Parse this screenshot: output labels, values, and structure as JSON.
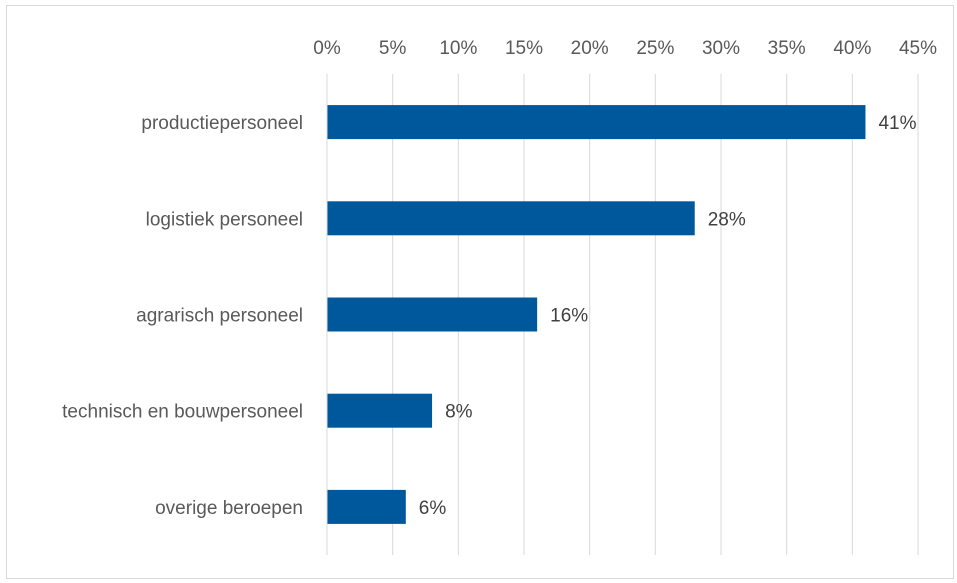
{
  "chart_data": {
    "type": "bar",
    "orientation": "horizontal",
    "categories": [
      "productiepersoneel",
      "logistiek personeel",
      "agrarisch personeel",
      "technisch en bouwpersoneel",
      "overige beroepen"
    ],
    "values": [
      41,
      28,
      16,
      8,
      6
    ],
    "data_labels": [
      "41%",
      "28%",
      "16%",
      "8%",
      "6%"
    ],
    "x_ticks": [
      "0%",
      "5%",
      "10%",
      "15%",
      "20%",
      "25%",
      "30%",
      "35%",
      "40%",
      "45%"
    ],
    "xlim": [
      0,
      45
    ],
    "x_axis_position": "top",
    "grid": true,
    "legend": "none",
    "title": "",
    "xlabel": "",
    "ylabel": "",
    "colors": {
      "bar": "#00589c",
      "grid": "#d9d9d9",
      "text": "#595959"
    }
  }
}
